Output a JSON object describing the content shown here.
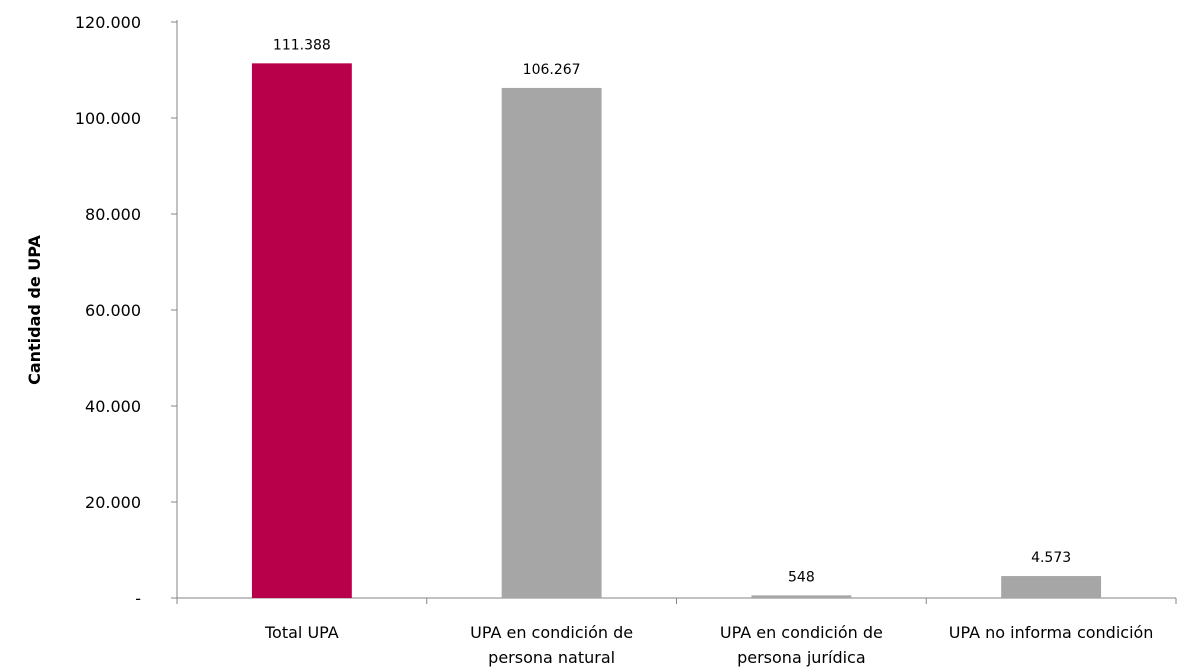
{
  "chart_data": {
    "type": "bar",
    "title": "",
    "xlabel": "",
    "ylabel": "Cantidad de UPA",
    "ylim": [
      0,
      120000
    ],
    "yticks": [
      {
        "value": 0,
        "label": "-"
      },
      {
        "value": 20000,
        "label": "20.000"
      },
      {
        "value": 40000,
        "label": "40.000"
      },
      {
        "value": 60000,
        "label": "60.000"
      },
      {
        "value": 80000,
        "label": "80.000"
      },
      {
        "value": 100000,
        "label": "100.000"
      },
      {
        "value": 120000,
        "label": "120.000"
      }
    ],
    "grid": false,
    "categories": [
      [
        "Total UPA"
      ],
      [
        "UPA en condición de",
        "persona natural"
      ],
      [
        "UPA en condición de",
        "persona jurídica"
      ],
      [
        "UPA no informa condición"
      ]
    ],
    "values": [
      111388,
      106267,
      548,
      4573
    ],
    "data_labels": [
      "111.388",
      "106.267",
      "548",
      "4.573"
    ],
    "colors": [
      "#b8004a",
      "#a6a6a6",
      "#a6a6a6",
      "#a6a6a6"
    ]
  }
}
